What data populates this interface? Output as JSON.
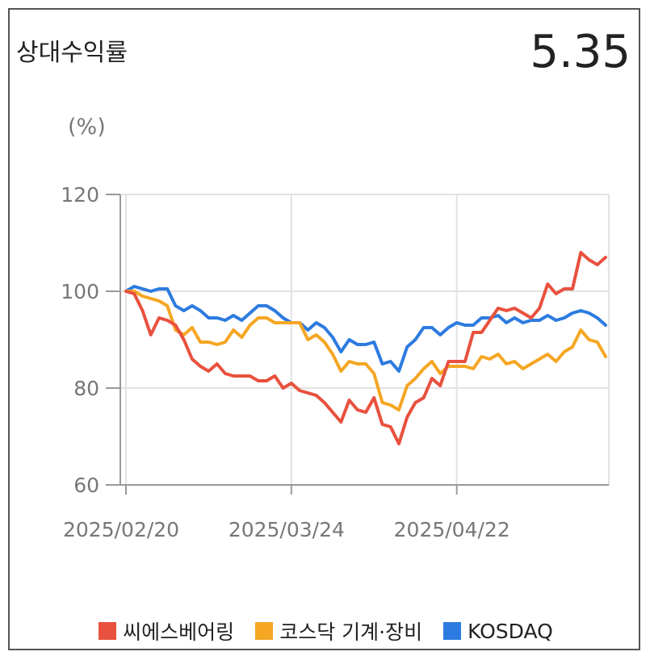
{
  "header": {
    "title": "상대수익률",
    "value": "5.35"
  },
  "colors": {
    "series1": "#e8513e",
    "series2": "#f5a623",
    "series3": "#2d7be0"
  },
  "chart_data": {
    "type": "line",
    "unit_label": "(%)",
    "ylim": [
      60,
      120
    ],
    "yticks": [
      60,
      80,
      100,
      120
    ],
    "x_tick_labels": [
      "2025/02/20",
      "2025/03/24",
      "2025/04/22"
    ],
    "x_tick_index": [
      0,
      20,
      40
    ],
    "grid": true,
    "legend_position": "bottom",
    "series": [
      {
        "name": "씨에스베어링",
        "color": "#e8513e",
        "values": [
          100,
          99.5,
          96,
          91,
          94.5,
          94,
          93,
          90,
          86,
          84.5,
          83.5,
          85,
          83,
          82.5,
          82.5,
          82.5,
          81.5,
          81.5,
          82.5,
          80,
          81,
          79.5,
          79,
          78.5,
          77,
          75,
          73,
          77.5,
          75.5,
          75,
          78,
          72.5,
          72,
          68.5,
          74,
          77,
          78,
          82,
          80.5,
          85.5,
          85.5,
          85.5,
          91.5,
          91.5,
          94,
          96.5,
          96,
          96.5,
          95.5,
          94.5,
          96.5,
          101.5,
          99.5,
          100.5,
          100.5,
          108,
          106.5,
          105.5,
          107
        ]
      },
      {
        "name": "코스닥 기계·장비",
        "color": "#f5a623",
        "values": [
          100,
          100,
          99,
          98.5,
          98,
          97,
          92,
          91,
          92.5,
          89.5,
          89.5,
          89,
          89.5,
          92,
          90.5,
          93,
          94.5,
          94.5,
          93.5,
          93.5,
          93.5,
          93.5,
          90,
          91,
          89.5,
          87,
          83.5,
          85.5,
          85,
          85,
          83,
          77,
          76.5,
          75.5,
          80.5,
          82,
          84,
          85.5,
          83,
          84.5,
          84.5,
          84.5,
          84,
          86.5,
          86,
          87,
          85,
          85.5,
          84,
          85,
          86,
          87,
          85.5,
          87.5,
          88.5,
          92,
          90,
          89.5,
          86.5
        ]
      },
      {
        "name": "KOSDAQ",
        "color": "#2d7be0",
        "values": [
          100,
          101,
          100.5,
          100,
          100.5,
          100.5,
          97,
          96,
          97,
          96,
          94.5,
          94.5,
          94,
          95,
          94,
          95.5,
          97,
          97,
          96,
          94.5,
          93.5,
          93.5,
          92,
          93.5,
          92.5,
          90.5,
          87.5,
          90,
          89,
          89,
          89.5,
          85,
          85.5,
          83.5,
          88.5,
          90,
          92.5,
          92.5,
          91,
          92.5,
          93.5,
          93,
          93,
          94.5,
          94.5,
          95,
          93.5,
          94.5,
          93.5,
          94,
          94,
          95,
          94,
          94.5,
          95.5,
          96,
          95.5,
          94.5,
          93
        ]
      }
    ]
  }
}
